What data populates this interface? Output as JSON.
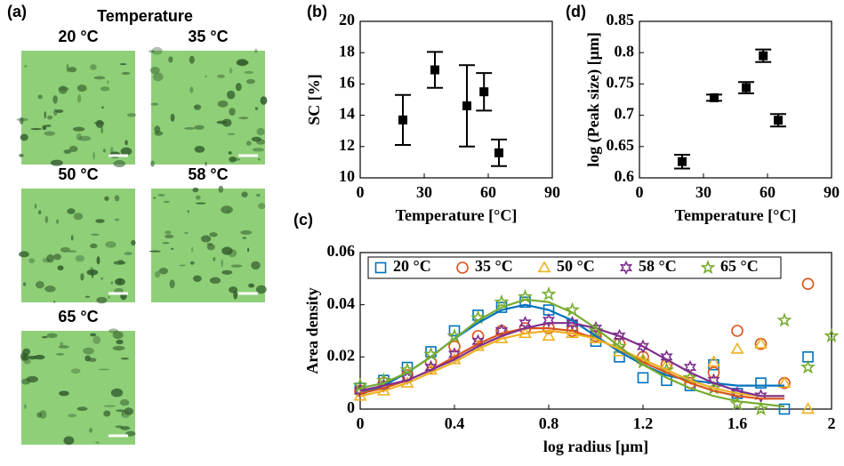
{
  "panel_a": {
    "label": "(a)",
    "title": "Temperature",
    "images": [
      "20 °C",
      "35 °C",
      "50 °C",
      "58 °C",
      "65 °C"
    ]
  },
  "chart_data": [
    {
      "type": "errorbar",
      "panel": "(b)",
      "xlabel": "Temperature [°C]",
      "ylabel": "SC [%]",
      "color": "#000000",
      "x": [
        20,
        35,
        50,
        58,
        65
      ],
      "values": [
        13.7,
        16.9,
        14.6,
        15.5,
        11.6
      ],
      "errors": [
        1.6,
        1.15,
        2.6,
        1.2,
        0.85
      ],
      "xlim": [
        0,
        90
      ],
      "xticks": [
        0,
        30,
        60,
        90
      ],
      "ylim": [
        10,
        20
      ],
      "yticks": [
        10,
        12,
        14,
        16,
        18,
        20
      ]
    },
    {
      "type": "scatter",
      "panel": "(c)",
      "xlabel": "log radius [μm]",
      "ylabel": "Area density",
      "legend": "top",
      "xlim": [
        0,
        2
      ],
      "xticks": [
        0,
        0.4,
        0.8,
        1.2,
        1.6,
        2
      ],
      "ylim": [
        0,
        0.06
      ],
      "yticks": [
        0,
        0.02,
        0.04,
        0.06
      ],
      "fit_x": [
        0,
        0.1,
        0.2,
        0.3,
        0.4,
        0.5,
        0.6,
        0.7,
        0.8,
        0.9,
        1.0,
        1.1,
        1.2,
        1.3,
        1.4,
        1.5,
        1.6,
        1.7,
        1.8
      ],
      "series": [
        {
          "name": "20 °C",
          "color": "#0072bd",
          "marker": "square",
          "x": [
            0,
            0.1,
            0.2,
            0.3,
            0.4,
            0.5,
            0.6,
            0.7,
            0.8,
            0.9,
            1.0,
            1.1,
            1.2,
            1.3,
            1.4,
            1.5,
            1.6,
            1.7,
            1.8,
            1.9
          ],
          "values": [
            0.008,
            0.011,
            0.016,
            0.022,
            0.03,
            0.036,
            0.039,
            0.041,
            0.038,
            0.032,
            0.026,
            0.02,
            0.012,
            0.011,
            0.009,
            0.017,
            0.006,
            0.01,
            0.0,
            0.02
          ],
          "fit": [
            0.006,
            0.009,
            0.014,
            0.02,
            0.027,
            0.033,
            0.038,
            0.04,
            0.038,
            0.034,
            0.028,
            0.022,
            0.017,
            0.013,
            0.011,
            0.01,
            0.009,
            0.009,
            0.009
          ]
        },
        {
          "name": "35 °C",
          "color": "#d95319",
          "marker": "circle",
          "x": [
            0,
            0.1,
            0.2,
            0.3,
            0.4,
            0.5,
            0.6,
            0.7,
            0.8,
            0.9,
            1.0,
            1.1,
            1.2,
            1.3,
            1.4,
            1.5,
            1.6,
            1.7,
            1.8,
            1.9
          ],
          "values": [
            0.007,
            0.01,
            0.013,
            0.018,
            0.024,
            0.028,
            0.03,
            0.031,
            0.031,
            0.03,
            0.028,
            0.025,
            0.02,
            0.017,
            0.01,
            0.014,
            0.03,
            0.025,
            0.01,
            0.048
          ],
          "fit": [
            0.006,
            0.008,
            0.011,
            0.015,
            0.02,
            0.025,
            0.029,
            0.031,
            0.031,
            0.03,
            0.027,
            0.023,
            0.018,
            0.014,
            0.01,
            0.007,
            0.005,
            0.004,
            0.004
          ]
        },
        {
          "name": "50 °C",
          "color": "#edb120",
          "marker": "triangle",
          "x": [
            0,
            0.1,
            0.2,
            0.3,
            0.4,
            0.5,
            0.6,
            0.7,
            0.8,
            0.9,
            1.0,
            1.1,
            1.2,
            1.3,
            1.4,
            1.5,
            1.6,
            1.7,
            1.8,
            1.9
          ],
          "values": [
            0.005,
            0.007,
            0.01,
            0.015,
            0.019,
            0.024,
            0.027,
            0.029,
            0.028,
            0.029,
            0.027,
            0.022,
            0.019,
            0.017,
            0.012,
            0.018,
            0.023,
            0.025,
            0.01,
            0.0
          ],
          "fit": [
            0.005,
            0.007,
            0.01,
            0.014,
            0.018,
            0.023,
            0.027,
            0.029,
            0.03,
            0.029,
            0.027,
            0.023,
            0.019,
            0.015,
            0.011,
            0.008,
            0.006,
            0.005,
            0.005
          ]
        },
        {
          "name": "58 °C",
          "color": "#7e2f8e",
          "marker": "hexagram",
          "x": [
            0,
            0.1,
            0.2,
            0.3,
            0.4,
            0.5,
            0.6,
            0.7,
            0.8,
            0.9,
            1.0,
            1.1,
            1.2,
            1.3,
            1.4,
            1.5,
            1.6,
            1.7
          ],
          "values": [
            0.007,
            0.009,
            0.012,
            0.016,
            0.021,
            0.026,
            0.03,
            0.033,
            0.034,
            0.033,
            0.031,
            0.028,
            0.024,
            0.02,
            0.016,
            0.011,
            0.006,
            0.005
          ],
          "fit": [
            0.007,
            0.009,
            0.011,
            0.015,
            0.019,
            0.024,
            0.028,
            0.031,
            0.033,
            0.033,
            0.031,
            0.028,
            0.024,
            0.019,
            0.014,
            0.01,
            0.007,
            0.005,
            0.005
          ]
        },
        {
          "name": "65 °C",
          "color": "#77ac30",
          "marker": "pentagram",
          "x": [
            0,
            0.1,
            0.2,
            0.3,
            0.4,
            0.5,
            0.6,
            0.7,
            0.8,
            0.9,
            1.0,
            1.1,
            1.2,
            1.3,
            1.4,
            1.5,
            1.6,
            1.7,
            1.8,
            1.9,
            2
          ],
          "values": [
            0.009,
            0.011,
            0.015,
            0.021,
            0.028,
            0.035,
            0.041,
            0.043,
            0.044,
            0.038,
            0.03,
            0.024,
            0.018,
            0.015,
            0.012,
            0.008,
            0.002,
            0.0,
            0.034,
            0.016,
            0.028
          ],
          "fit": [
            0.008,
            0.01,
            0.014,
            0.02,
            0.027,
            0.034,
            0.039,
            0.042,
            0.041,
            0.037,
            0.031,
            0.024,
            0.017,
            0.012,
            0.008,
            0.005,
            0.003,
            0.002,
            0.001
          ]
        }
      ]
    },
    {
      "type": "errorbar",
      "panel": "(d)",
      "xlabel": "Temperature [°C]",
      "ylabel": "log (Peak size) [μm]",
      "color": "#000000",
      "x": [
        20,
        35,
        50,
        58,
        65
      ],
      "values": [
        0.626,
        0.728,
        0.744,
        0.795,
        0.692
      ],
      "errors": [
        0.011,
        0.005,
        0.009,
        0.01,
        0.01
      ],
      "xlim": [
        0,
        90
      ],
      "xticks": [
        0,
        30,
        60,
        90
      ],
      "ylim": [
        0.6,
        0.85
      ],
      "yticks": [
        0.6,
        0.65,
        0.7,
        0.75,
        0.8,
        0.85
      ]
    }
  ]
}
